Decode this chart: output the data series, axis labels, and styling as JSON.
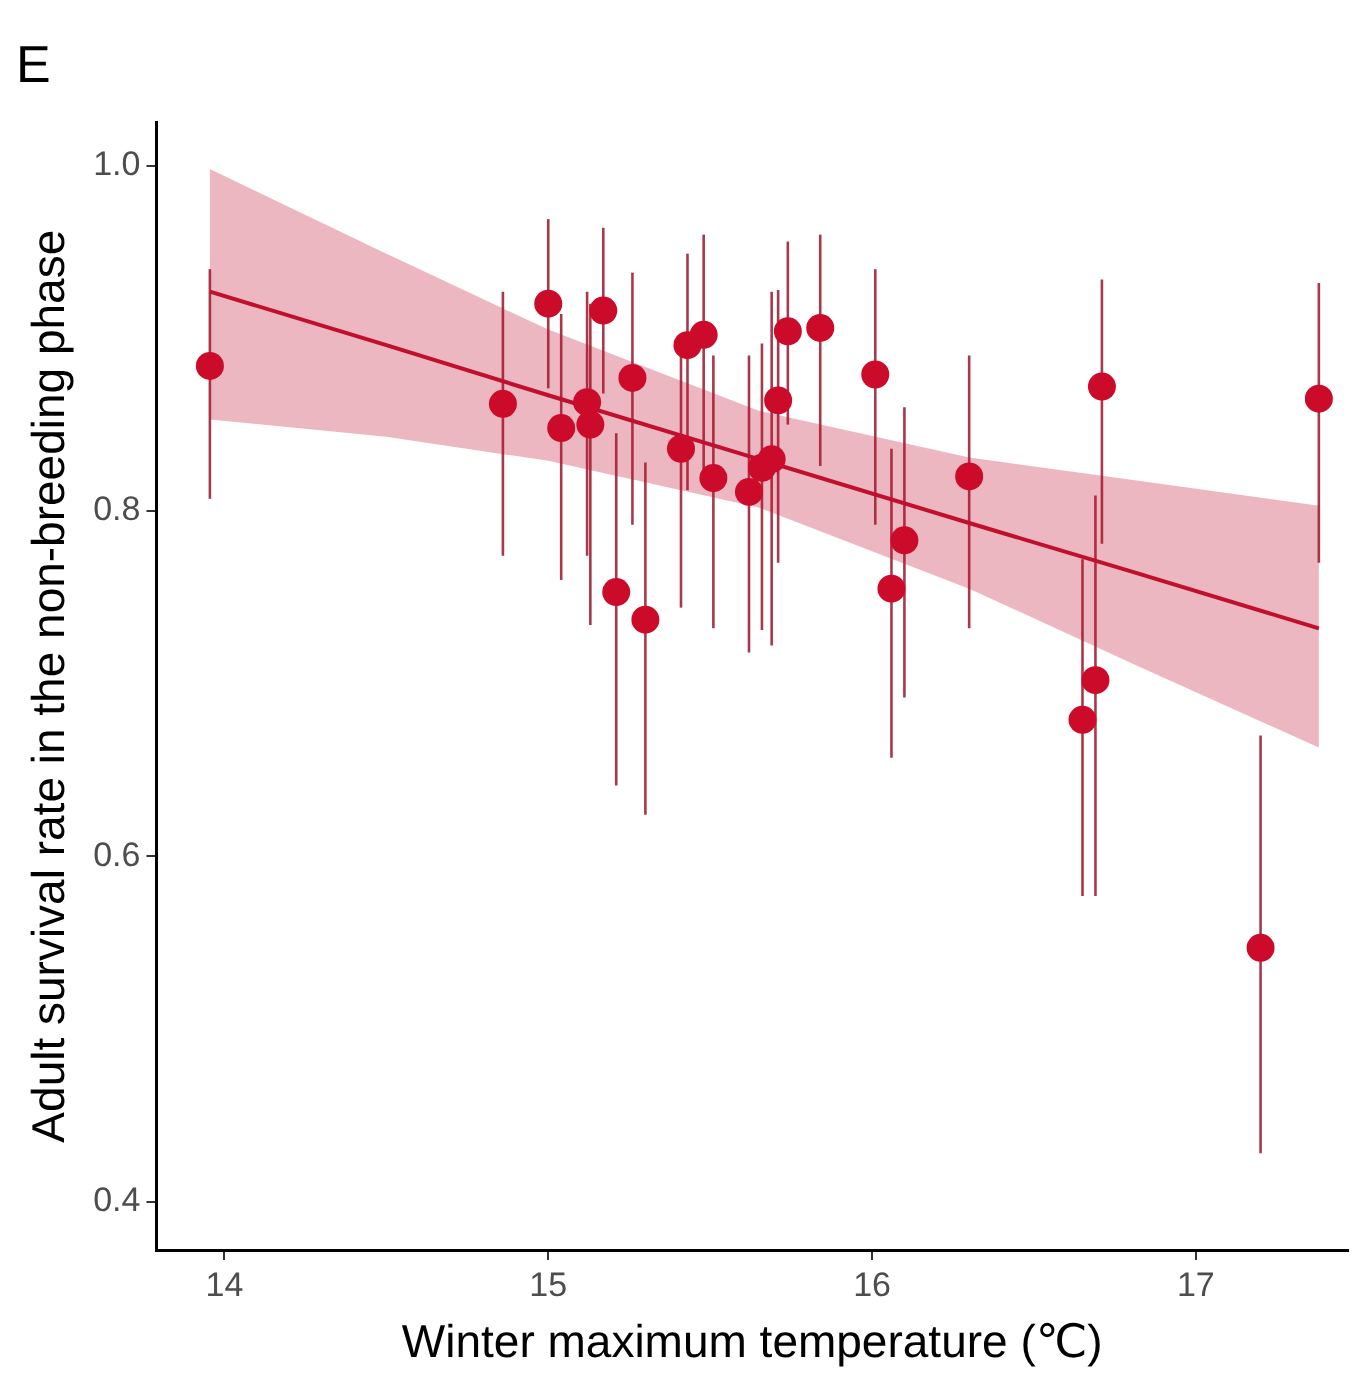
{
  "chart_data": {
    "type": "scatter",
    "title": "E",
    "xlabel": "Winter maximum temperature (℃)",
    "ylabel": "Adult survival rate in the non-breeding phase",
    "xlim": [
      13.79,
      17.47
    ],
    "ylim": [
      0.372,
      1.025
    ],
    "xticks": [
      14,
      15,
      16,
      17
    ],
    "yticks": [
      {
        "value": 0.4,
        "label": "0.4"
      },
      {
        "value": 0.6,
        "label": "0.6"
      },
      {
        "value": 0.8,
        "label": "0.8"
      },
      {
        "value": 1.0,
        "label": "1.0"
      }
    ],
    "grid": false,
    "legend": false,
    "marker": "circle",
    "series": [
      {
        "color": "#cc0a2a",
        "x": [
          13.955,
          14.86,
          15.0,
          15.04,
          15.17,
          15.12,
          15.13,
          15.21,
          15.3,
          15.26,
          15.41,
          15.43,
          15.48,
          15.51,
          15.62,
          15.66,
          15.69,
          15.71,
          15.74,
          15.84,
          16.01,
          16.06,
          16.1,
          16.3,
          16.65,
          16.69,
          16.71,
          17.2,
          17.38
        ],
        "values": [
          0.884,
          0.862,
          0.92,
          0.848,
          0.916,
          0.863,
          0.85,
          0.753,
          0.737,
          0.877,
          0.836,
          0.896,
          0.902,
          0.819,
          0.811,
          0.825,
          0.83,
          0.864,
          0.904,
          0.906,
          0.879,
          0.755,
          0.783,
          0.82,
          0.679,
          0.702,
          0.872,
          0.547,
          0.865
        ],
        "errors": [
          [
            0.807,
            0.94
          ],
          [
            0.774,
            0.927
          ],
          [
            0.871,
            0.969
          ],
          [
            0.76,
            0.914
          ],
          [
            0.868,
            0.964
          ],
          [
            0.774,
            0.927
          ],
          [
            0.734,
            0.92
          ],
          [
            0.641,
            0.845
          ],
          [
            0.624,
            0.828
          ],
          [
            0.792,
            0.938
          ],
          [
            0.744,
            0.891
          ],
          [
            0.812,
            0.949
          ],
          [
            0.818,
            0.96
          ],
          [
            0.732,
            0.89
          ],
          [
            0.718,
            0.89
          ],
          [
            0.731,
            0.897
          ],
          [
            0.722,
            0.927
          ],
          [
            0.77,
            0.928
          ],
          [
            0.85,
            0.956
          ],
          [
            0.826,
            0.96
          ],
          [
            0.792,
            0.94
          ],
          [
            0.657,
            0.836
          ],
          [
            0.692,
            0.86
          ],
          [
            0.732,
            0.89
          ],
          [
            0.577,
            0.772
          ],
          [
            0.577,
            0.809
          ],
          [
            0.781,
            0.934
          ],
          [
            0.428,
            0.67
          ],
          [
            0.77,
            0.932
          ]
        ]
      },
      {
        "type": "line",
        "marker": "none",
        "color": "#c0102e",
        "x": [
          13.955,
          14.5,
          15.0,
          15.65,
          16.3,
          16.8,
          17.38
        ],
        "values": [
          0.927,
          0.896,
          0.867,
          0.83,
          0.793,
          0.765,
          0.732
        ],
        "lower": [
          0.853,
          0.843,
          0.829,
          0.802,
          0.755,
          0.712,
          0.663
        ],
        "upper": [
          0.998,
          0.949,
          0.905,
          0.858,
          0.831,
          0.818,
          0.803
        ]
      }
    ]
  }
}
